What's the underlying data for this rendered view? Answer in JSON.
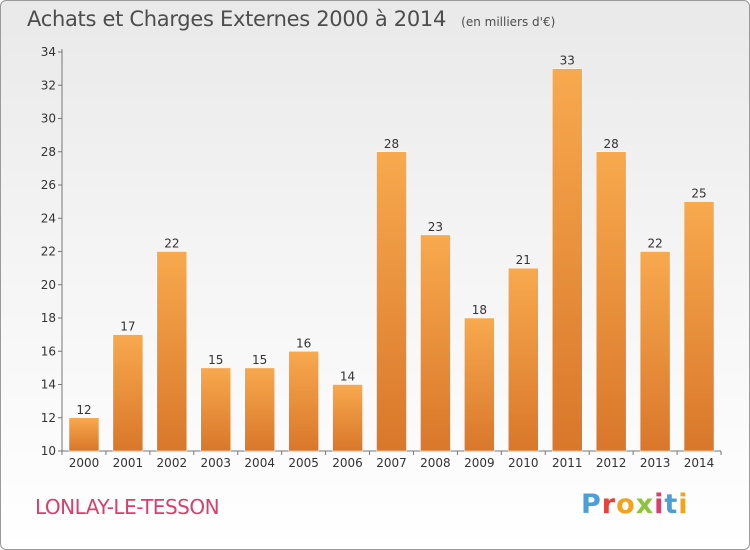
{
  "header": {
    "title": "Achats et Charges Externes 2000 à 2014",
    "subtitle": "(en milliers d'€)"
  },
  "footer": {
    "place": "LONLAY-LE-TESSON",
    "logo": "Proxiti"
  },
  "colors": {
    "bar_light": "#f8a94e",
    "bar_dark": "#d9772a",
    "place_text": "#d83f6b"
  },
  "chart_data": {
    "type": "bar",
    "title": "Achats et Charges Externes 2000 à 2014",
    "subtitle": "(en milliers d'€)",
    "categories": [
      "2000",
      "2001",
      "2002",
      "2003",
      "2004",
      "2005",
      "2006",
      "2007",
      "2008",
      "2009",
      "2010",
      "2011",
      "2012",
      "2013",
      "2014"
    ],
    "values": [
      12,
      17,
      22,
      15,
      15,
      16,
      14,
      28,
      23,
      18,
      21,
      33,
      28,
      22,
      25
    ],
    "ylim": [
      10,
      34
    ],
    "yticks": [
      10,
      12,
      14,
      16,
      18,
      20,
      22,
      24,
      26,
      28,
      30,
      32,
      34
    ],
    "grid": false,
    "data_labels": true
  }
}
